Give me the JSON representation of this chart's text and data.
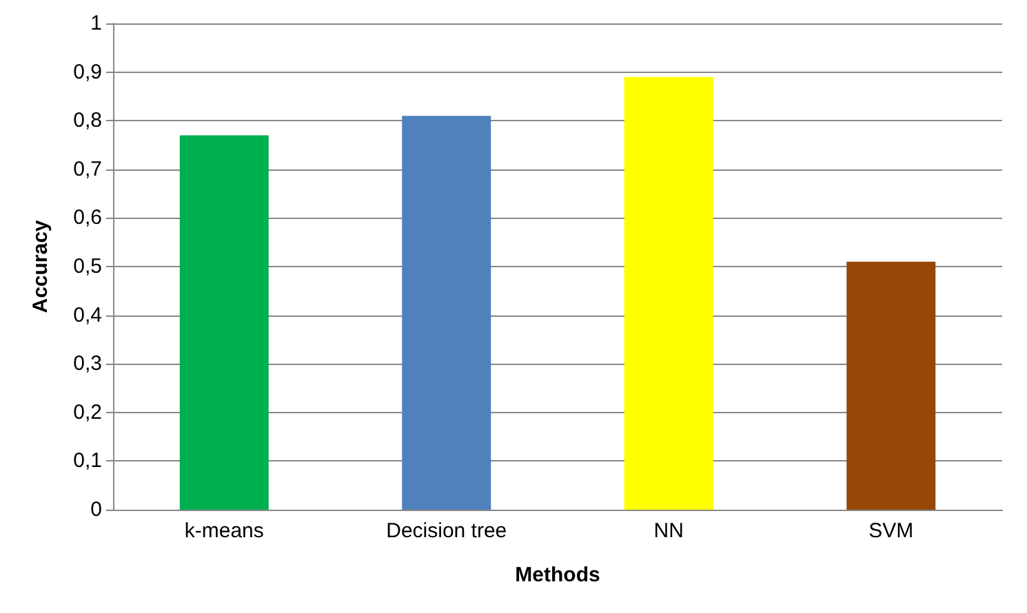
{
  "chart_data": {
    "type": "bar",
    "xlabel": "Methods",
    "ylabel": "Accuracy",
    "categories": [
      "k-means",
      "Decision tree",
      "NN",
      "SVM"
    ],
    "values": [
      0.77,
      0.81,
      0.89,
      0.51
    ],
    "colors": [
      "#00b050",
      "#4f81bd",
      "#ffff00",
      "#974706"
    ],
    "ylim": [
      0,
      1
    ],
    "yticks": [
      0,
      {
        "value": 0.1,
        "label": "0,1"
      },
      {
        "value": 0.2,
        "label": "0,2"
      },
      {
        "value": 0.3,
        "label": "0,3"
      },
      {
        "value": 0.4,
        "label": "0,4"
      },
      {
        "value": 0.5,
        "label": "0,5"
      },
      {
        "value": 0.6,
        "label": "0,6"
      },
      {
        "value": 0.7,
        "label": "0,7"
      },
      {
        "value": 0.8,
        "label": "0,8"
      },
      {
        "value": 0.9,
        "label": "0,9"
      },
      1
    ],
    "grid": "y"
  }
}
